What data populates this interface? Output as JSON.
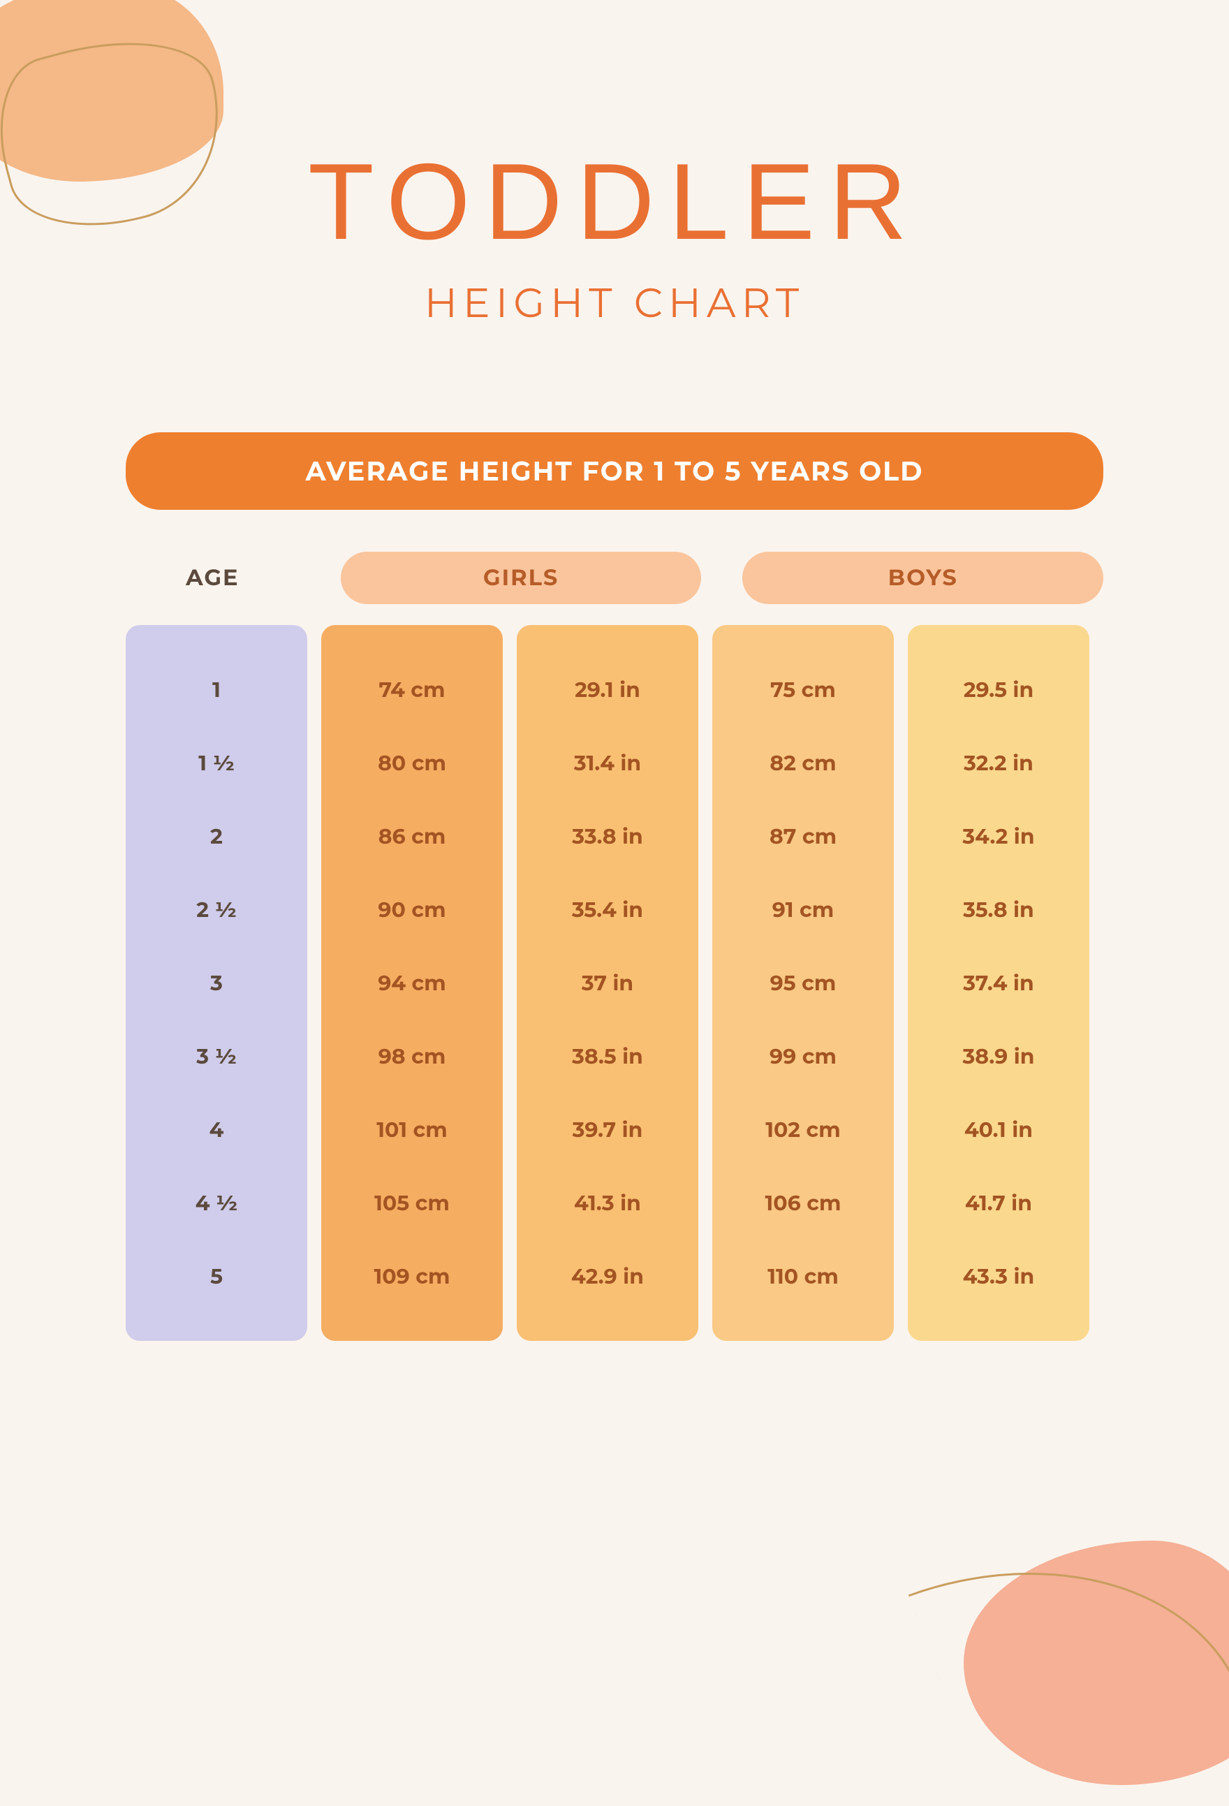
{
  "title": "TODDLER",
  "subtitle": "HEIGHT CHART",
  "banner": "AVERAGE HEIGHT FOR 1 TO 5 YEARS OLD",
  "columns": {
    "age": "AGE",
    "girls": "GIRLS",
    "boys": "BOYS"
  },
  "table": {
    "type": "table",
    "background_color": "#faf4ee",
    "banner_color": "#ee7f2f",
    "banner_text_color": "#ffffff",
    "pill_color": "#fac59c",
    "pill_text_color": "#b65c28",
    "col_colors": {
      "age": "#d0cceb",
      "girls_cm": "#f5ad62",
      "girls_in": "#f9c073",
      "boys_cm": "#f9c985",
      "boys_in": "#fad88e"
    },
    "cell_text_color_age": "#5b4a3d",
    "cell_text_color_data": "#a35422",
    "title_color": "#e97033",
    "title_fontsize": 155,
    "subtitle_fontsize": 58,
    "banner_fontsize": 38,
    "header_fontsize": 32,
    "cell_fontsize": 30,
    "border_radius": 20,
    "rows": [
      {
        "age": "1",
        "girls_cm": "74 cm",
        "girls_in": "29.1 in",
        "boys_cm": "75 cm",
        "boys_in": "29.5 in"
      },
      {
        "age": "1 ½",
        "girls_cm": "80 cm",
        "girls_in": "31.4 in",
        "boys_cm": "82 cm",
        "boys_in": "32.2 in"
      },
      {
        "age": "2",
        "girls_cm": "86 cm",
        "girls_in": "33.8 in",
        "boys_cm": "87 cm",
        "boys_in": "34.2 in"
      },
      {
        "age": "2 ½",
        "girls_cm": "90 cm",
        "girls_in": "35.4 in",
        "boys_cm": "91 cm",
        "boys_in": "35.8 in"
      },
      {
        "age": "3",
        "girls_cm": "94 cm",
        "girls_in": "37 in",
        "boys_cm": "95 cm",
        "boys_in": "37.4 in"
      },
      {
        "age": "3 ½",
        "girls_cm": "98 cm",
        "girls_in": "38.5 in",
        "boys_cm": "99 cm",
        "boys_in": "38.9 in"
      },
      {
        "age": "4",
        "girls_cm": "101 cm",
        "girls_in": "39.7 in",
        "boys_cm": "102 cm",
        "boys_in": "40.1 in"
      },
      {
        "age": "4 ½",
        "girls_cm": "105 cm",
        "girls_in": "41.3 in",
        "boys_cm": "106 cm",
        "boys_in": "41.7 in"
      },
      {
        "age": "5",
        "girls_cm": "109 cm",
        "girls_in": "42.9 in",
        "boys_cm": "110 cm",
        "boys_in": "43.3 in"
      }
    ]
  },
  "blobs": {
    "top_left_color": "#f5b887",
    "bottom_right_color": "#f5b096",
    "line_color": "#c99d5e"
  }
}
